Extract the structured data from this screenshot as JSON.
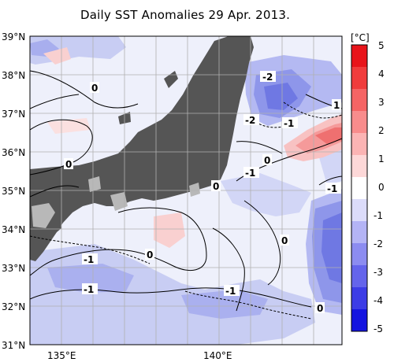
{
  "title": "Daily SST Anomalies 29 Apr. 2013.",
  "map": {
    "lat_labels": [
      "39°N",
      "38°N",
      "37°N",
      "36°N",
      "35°N",
      "34°N",
      "33°N",
      "32°N",
      "31°N"
    ],
    "lon_labels": [
      "135°E",
      "140°E"
    ],
    "contour_labels": [
      "-2",
      "0",
      "1",
      "-2",
      "-1",
      "0",
      "0",
      "-1",
      "-1",
      "0",
      "0",
      "-1",
      "0",
      "-1",
      "-1",
      "0"
    ]
  },
  "colorbar": {
    "unit": "[°C]",
    "ticks": [
      "5",
      "4",
      "3",
      "2",
      "1",
      "0",
      "-1",
      "-2",
      "-3",
      "-4",
      "-5"
    ],
    "colors": [
      "#e8141a",
      "#f03c3c",
      "#f56464",
      "#f88c8c",
      "#fbb4b4",
      "#fdd8d8",
      "#ffffff",
      "#dcdcfa",
      "#b4b4f5",
      "#8c8cf0",
      "#6464eb",
      "#3c3ce6",
      "#1414e0"
    ]
  }
}
